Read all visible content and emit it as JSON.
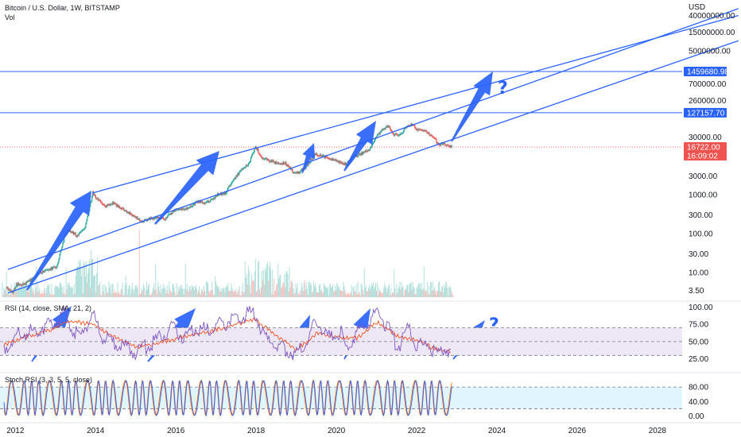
{
  "header": {
    "symbol": "Bitcoin / U.S. Dollar, 1W, BITSTAMP",
    "volume_label": "Vol",
    "currency": "USD"
  },
  "price_axis": {
    "labels": [
      "40000000.00",
      "15000000.00",
      "5000000.00",
      "700000.00",
      "260000.00",
      "30000.00",
      "3000.00",
      "1000.00",
      "300.00",
      "100.00",
      "30.00",
      "10.00",
      "3.50"
    ],
    "tag_upper": "1459680.98",
    "tag_lower": "127157.70",
    "tag_last_price": "16722.00",
    "tag_countdown": "16:09:02"
  },
  "rsi": {
    "label": "RSI (14, close, SMA, 21, 2)",
    "axis_labels": [
      "100.00",
      "75.00",
      "50.00",
      "25.00"
    ]
  },
  "stoch": {
    "label": "Stoch RSI (3, 3, 5, 5, close)",
    "axis_labels": [
      "80.00",
      "40.00",
      "0.00"
    ]
  },
  "time_axis": {
    "labels": [
      "2012",
      "2014",
      "2016",
      "2018",
      "2020",
      "2022",
      "2024",
      "2026",
      "2028"
    ]
  },
  "annotations": {
    "question_mark": "?"
  },
  "colors": {
    "line_blue": "#2962ff",
    "arrow_blue": "#2962ff",
    "up": "#26a69a",
    "down": "#ef5350",
    "rsi_line": "#7e57c2",
    "rsi_ma": "#f4511e",
    "rsi_band": "#ede7f6",
    "stoch_band": "#e1f5fe",
    "stoch_k": "#2962ff",
    "stoch_d": "#ff6d00",
    "price_tag_red": "#ef5350"
  },
  "chart_data": [
    {
      "type": "line",
      "pane": "price",
      "scale": "log",
      "x_unit": "year",
      "ylim": [
        2.5,
        60000000
      ],
      "xlim": [
        2011.6,
        2028.6
      ],
      "series": [
        {
          "kind": "weekly-candles",
          "points": [
            [
              2011.75,
              4
            ],
            [
              2011.9,
              3
            ],
            [
              2012.0,
              5
            ],
            [
              2012.2,
              5
            ],
            [
              2012.4,
              7
            ],
            [
              2012.6,
              10
            ],
            [
              2012.8,
              12
            ],
            [
              2013.0,
              14
            ],
            [
              2013.2,
              90
            ],
            [
              2013.3,
              120
            ],
            [
              2013.5,
              90
            ],
            [
              2013.7,
              130
            ],
            [
              2013.9,
              1100
            ],
            [
              2014.0,
              800
            ],
            [
              2014.2,
              500
            ],
            [
              2014.4,
              620
            ],
            [
              2014.6,
              450
            ],
            [
              2014.8,
              350
            ],
            [
              2015.0,
              250
            ],
            [
              2015.1,
              200
            ],
            [
              2015.3,
              240
            ],
            [
              2015.5,
              260
            ],
            [
              2015.7,
              240
            ],
            [
              2015.9,
              380
            ],
            [
              2016.0,
              430
            ],
            [
              2016.2,
              420
            ],
            [
              2016.4,
              550
            ],
            [
              2016.5,
              660
            ],
            [
              2016.7,
              620
            ],
            [
              2016.9,
              780
            ],
            [
              2017.0,
              1000
            ],
            [
              2017.2,
              1100
            ],
            [
              2017.4,
              2400
            ],
            [
              2017.6,
              4200
            ],
            [
              2017.8,
              6500
            ],
            [
              2017.95,
              18000
            ],
            [
              2018.1,
              9000
            ],
            [
              2018.3,
              7500
            ],
            [
              2018.5,
              6500
            ],
            [
              2018.7,
              6500
            ],
            [
              2018.9,
              3800
            ],
            [
              2019.0,
              3600
            ],
            [
              2019.2,
              5000
            ],
            [
              2019.45,
              11000
            ],
            [
              2019.6,
              10000
            ],
            [
              2019.8,
              8500
            ],
            [
              2020.0,
              7200
            ],
            [
              2020.2,
              6000
            ],
            [
              2020.4,
              9500
            ],
            [
              2020.6,
              11500
            ],
            [
              2020.8,
              15000
            ],
            [
              2020.95,
              29000
            ],
            [
              2021.1,
              45000
            ],
            [
              2021.25,
              60000
            ],
            [
              2021.4,
              35000
            ],
            [
              2021.55,
              33000
            ],
            [
              2021.75,
              61000
            ],
            [
              2021.85,
              65000
            ],
            [
              2022.0,
              46000
            ],
            [
              2022.2,
              42000
            ],
            [
              2022.4,
              30000
            ],
            [
              2022.5,
              20000
            ],
            [
              2022.7,
              19500
            ],
            [
              2022.85,
              16700
            ]
          ]
        }
      ],
      "trendlines": [
        {
          "name": "upper-channel",
          "points": [
            [
              2011.8,
              12
            ],
            [
              2030,
              60000000
            ]
          ]
        },
        {
          "name": "middle-channel",
          "points": [
            [
              2013.9,
              1100
            ],
            [
              2030,
              40000000
            ]
          ]
        },
        {
          "name": "lower-channel",
          "points": [
            [
              2011.8,
              3
            ],
            [
              2030,
              9000000
            ]
          ]
        }
      ],
      "horizontal_lines": [
        1459680.98,
        127157.7
      ],
      "last_price": 16722.0
    },
    {
      "type": "line",
      "pane": "rsi",
      "ylim": [
        20,
        105
      ],
      "levels": [
        70,
        50,
        30
      ],
      "series": [
        {
          "name": "RSI",
          "points": [
            [
              2011.7,
              40
            ],
            [
              2012.0,
              58
            ],
            [
              2012.3,
              62
            ],
            [
              2012.6,
              70
            ],
            [
              2012.9,
              75
            ],
            [
              2013.2,
              92
            ],
            [
              2013.4,
              70
            ],
            [
              2013.6,
              55
            ],
            [
              2013.9,
              92
            ],
            [
              2014.1,
              60
            ],
            [
              2014.4,
              50
            ],
            [
              2014.7,
              42
            ],
            [
              2015.0,
              35
            ],
            [
              2015.3,
              45
            ],
            [
              2015.6,
              55
            ],
            [
              2015.9,
              70
            ],
            [
              2016.2,
              55
            ],
            [
              2016.5,
              70
            ],
            [
              2016.8,
              65
            ],
            [
              2017.0,
              72
            ],
            [
              2017.3,
              80
            ],
            [
              2017.6,
              85
            ],
            [
              2017.95,
              92
            ],
            [
              2018.2,
              55
            ],
            [
              2018.5,
              45
            ],
            [
              2018.8,
              38
            ],
            [
              2019.0,
              32
            ],
            [
              2019.3,
              60
            ],
            [
              2019.5,
              80
            ],
            [
              2019.8,
              55
            ],
            [
              2020.1,
              62
            ],
            [
              2020.2,
              35
            ],
            [
              2020.5,
              65
            ],
            [
              2020.8,
              75
            ],
            [
              2021.0,
              92
            ],
            [
              2021.3,
              68
            ],
            [
              2021.5,
              40
            ],
            [
              2021.8,
              72
            ],
            [
              2022.0,
              42
            ],
            [
              2022.3,
              48
            ],
            [
              2022.5,
              27
            ],
            [
              2022.7,
              42
            ],
            [
              2022.85,
              33
            ]
          ]
        },
        {
          "name": "RSI-MA",
          "points": [
            [
              2011.7,
              45
            ],
            [
              2012.3,
              58
            ],
            [
              2012.9,
              68
            ],
            [
              2013.3,
              80
            ],
            [
              2013.9,
              75
            ],
            [
              2014.4,
              58
            ],
            [
              2015.0,
              42
            ],
            [
              2015.6,
              48
            ],
            [
              2016.2,
              58
            ],
            [
              2016.8,
              64
            ],
            [
              2017.3,
              72
            ],
            [
              2017.95,
              82
            ],
            [
              2018.5,
              58
            ],
            [
              2019.0,
              38
            ],
            [
              2019.5,
              62
            ],
            [
              2020.1,
              56
            ],
            [
              2020.5,
              55
            ],
            [
              2021.0,
              78
            ],
            [
              2021.5,
              58
            ],
            [
              2022.0,
              52
            ],
            [
              2022.5,
              38
            ],
            [
              2022.85,
              35
            ]
          ]
        }
      ]
    },
    {
      "type": "line",
      "pane": "stoch-rsi",
      "ylim": [
        -5,
        100
      ],
      "levels": [
        80,
        20
      ],
      "series": [
        {
          "name": "%K"
        },
        {
          "name": "%D"
        }
      ]
    }
  ]
}
